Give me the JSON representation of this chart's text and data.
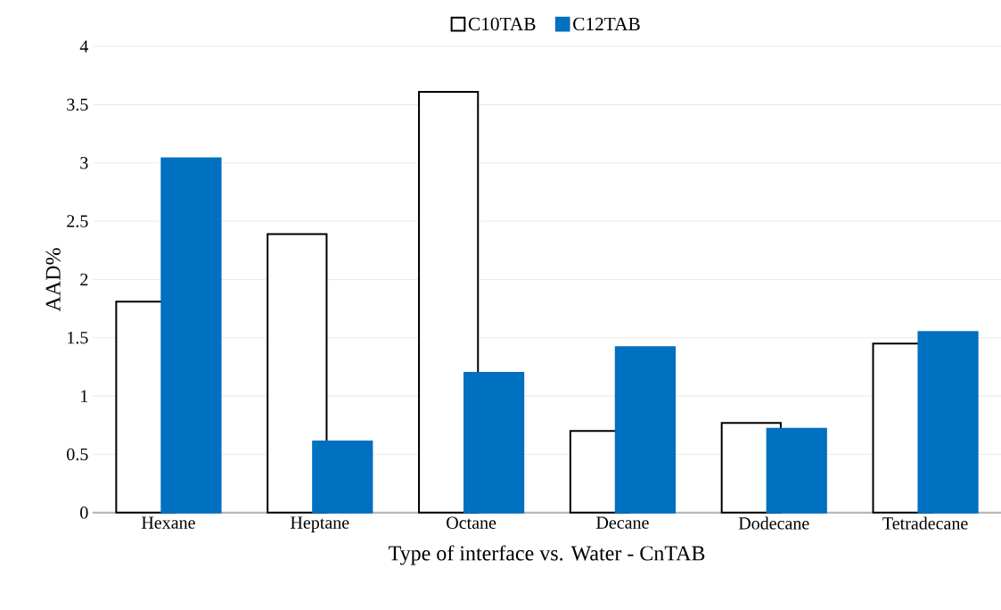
{
  "chart_data": {
    "type": "bar",
    "xlabel": "Type of interface vs. Water - CnTAB",
    "ylabel": "AAD%",
    "categories": [
      "Hexane",
      "Heptane",
      "Octane",
      "Decane",
      "Dodecane",
      "Tetradecane"
    ],
    "series": [
      {
        "name": "C10TAB",
        "color": "#ffffff",
        "values": [
          1.81,
          2.39,
          3.61,
          0.7,
          0.77,
          1.45
        ]
      },
      {
        "name": "C12TAB",
        "color": "#0070c0",
        "values": [
          3.04,
          0.61,
          1.2,
          1.42,
          0.72,
          1.55
        ]
      }
    ],
    "ylim": [
      0,
      4
    ],
    "yticks": [
      0,
      0.5,
      1,
      1.5,
      2,
      2.5,
      3,
      3.5,
      4
    ],
    "grid": "y",
    "legend": "top"
  }
}
